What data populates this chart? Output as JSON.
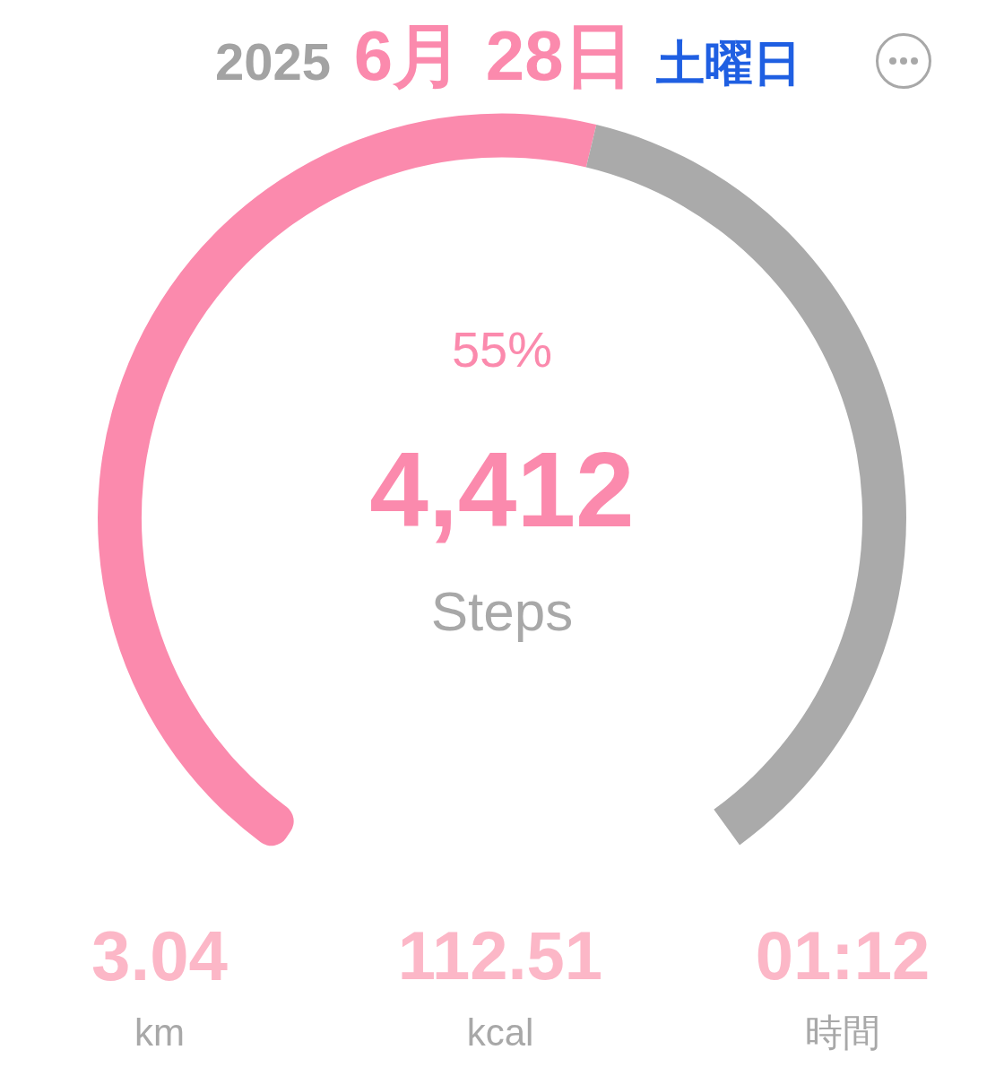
{
  "chart_data": {
    "type": "donut",
    "title": "2025 6月 28日 土曜日",
    "categories": [
      null,
      null
    ],
    "values": [
      55,
      45
    ],
    "colors": [
      "#fb8aad",
      "#aaaaaa"
    ],
    "annotations": [
      "55%",
      "4,412",
      "Steps",
      "3.04",
      "km",
      "112.51",
      "kcal",
      "01:12",
      "時間"
    ]
  }
}
